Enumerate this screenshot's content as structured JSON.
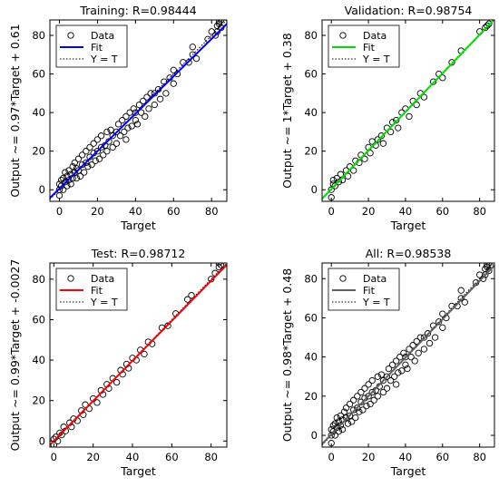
{
  "chart_data": [
    {
      "type": "scatter",
      "title": "Training: R=0.98444",
      "xlabel": "Target",
      "ylabel": "Output ~= 0.97*Target + 0.61",
      "xlim": [
        -5,
        88
      ],
      "ylim": [
        -6,
        88
      ],
      "xticks": [
        "0",
        "20",
        "40",
        "60",
        "80"
      ],
      "yticks": [
        "0",
        "20",
        "40",
        "60",
        "80"
      ],
      "fit": {
        "slope": 0.97,
        "intercept": 0.61,
        "color": "#0000ff"
      },
      "legend": {
        "position": "top-left",
        "entries": [
          "Data",
          "Fit",
          "Y = T"
        ]
      },
      "grid": false,
      "points": [
        [
          0,
          0
        ],
        [
          0,
          3
        ],
        [
          0,
          -3
        ],
        [
          1,
          5
        ],
        [
          1,
          2
        ],
        [
          2,
          0
        ],
        [
          2,
          6
        ],
        [
          3,
          4
        ],
        [
          3,
          9
        ],
        [
          4,
          2
        ],
        [
          4,
          7
        ],
        [
          5,
          5
        ],
        [
          5,
          10
        ],
        [
          6,
          3
        ],
        [
          6,
          8
        ],
        [
          7,
          12
        ],
        [
          7,
          6
        ],
        [
          8,
          9
        ],
        [
          8,
          14
        ],
        [
          9,
          6
        ],
        [
          9,
          11
        ],
        [
          10,
          10
        ],
        [
          10,
          16
        ],
        [
          11,
          7
        ],
        [
          12,
          13
        ],
        [
          12,
          18
        ],
        [
          13,
          9
        ],
        [
          14,
          14
        ],
        [
          14,
          20
        ],
        [
          15,
          12
        ],
        [
          16,
          17
        ],
        [
          16,
          22
        ],
        [
          17,
          13
        ],
        [
          18,
          19
        ],
        [
          18,
          24
        ],
        [
          19,
          15
        ],
        [
          20,
          20
        ],
        [
          20,
          26
        ],
        [
          21,
          16
        ],
        [
          22,
          22
        ],
        [
          22,
          28
        ],
        [
          23,
          18
        ],
        [
          24,
          23
        ],
        [
          25,
          30
        ],
        [
          25,
          20
        ],
        [
          26,
          25
        ],
        [
          27,
          31
        ],
        [
          28,
          22
        ],
        [
          28,
          28
        ],
        [
          30,
          30
        ],
        [
          30,
          24
        ],
        [
          31,
          34
        ],
        [
          32,
          28
        ],
        [
          33,
          36
        ],
        [
          34,
          30
        ],
        [
          35,
          38
        ],
        [
          35,
          26
        ],
        [
          36,
          32
        ],
        [
          37,
          40
        ],
        [
          38,
          33
        ],
        [
          39,
          42
        ],
        [
          40,
          36
        ],
        [
          40,
          40
        ],
        [
          41,
          34
        ],
        [
          42,
          44
        ],
        [
          43,
          40
        ],
        [
          44,
          46
        ],
        [
          45,
          38
        ],
        [
          46,
          48
        ],
        [
          47,
          42
        ],
        [
          48,
          50
        ],
        [
          50,
          50
        ],
        [
          50,
          44
        ],
        [
          52,
          52
        ],
        [
          53,
          47
        ],
        [
          55,
          56
        ],
        [
          56,
          50
        ],
        [
          58,
          58
        ],
        [
          60,
          62
        ],
        [
          60,
          55
        ],
        [
          62,
          60
        ],
        [
          65,
          66
        ],
        [
          68,
          66
        ],
        [
          70,
          70
        ],
        [
          70,
          74
        ],
        [
          72,
          68
        ],
        [
          78,
          78
        ],
        [
          80,
          82
        ],
        [
          82,
          80
        ],
        [
          83,
          85
        ],
        [
          84,
          87
        ],
        [
          85,
          84
        ],
        [
          85,
          88
        ],
        [
          84,
          86
        ],
        [
          83,
          82
        ]
      ]
    },
    {
      "type": "scatter",
      "title": "Validation: R=0.98754",
      "xlabel": "Target",
      "ylabel": "Output ~= 1*Target + 0.38",
      "xlim": [
        -5,
        88
      ],
      "ylim": [
        -6,
        88
      ],
      "xticks": [
        "0",
        "20",
        "40",
        "60",
        "80"
      ],
      "yticks": [
        "0",
        "20",
        "40",
        "60",
        "80"
      ],
      "fit": {
        "slope": 1.0,
        "intercept": 0.38,
        "color": "#00e000"
      },
      "legend": {
        "position": "top-left",
        "entries": [
          "Data",
          "Fit",
          "Y = T"
        ]
      },
      "grid": false,
      "points": [
        [
          0,
          -4
        ],
        [
          0,
          0
        ],
        [
          1,
          3
        ],
        [
          1,
          5
        ],
        [
          2,
          2
        ],
        [
          3,
          6
        ],
        [
          4,
          4
        ],
        [
          5,
          8
        ],
        [
          6,
          5
        ],
        [
          8,
          10
        ],
        [
          9,
          7
        ],
        [
          10,
          12
        ],
        [
          12,
          10
        ],
        [
          13,
          15
        ],
        [
          15,
          14
        ],
        [
          16,
          18
        ],
        [
          18,
          16
        ],
        [
          20,
          22
        ],
        [
          21,
          19
        ],
        [
          22,
          25
        ],
        [
          24,
          23
        ],
        [
          25,
          26
        ],
        [
          27,
          28
        ],
        [
          28,
          24
        ],
        [
          30,
          32
        ],
        [
          32,
          30
        ],
        [
          33,
          35
        ],
        [
          35,
          36
        ],
        [
          36,
          32
        ],
        [
          38,
          40
        ],
        [
          40,
          42
        ],
        [
          42,
          38
        ],
        [
          44,
          46
        ],
        [
          46,
          44
        ],
        [
          48,
          50
        ],
        [
          50,
          48
        ],
        [
          55,
          56
        ],
        [
          58,
          60
        ],
        [
          60,
          58
        ],
        [
          65,
          66
        ],
        [
          70,
          72
        ],
        [
          80,
          82
        ],
        [
          83,
          84
        ],
        [
          84,
          85
        ],
        [
          85,
          86
        ]
      ]
    },
    {
      "type": "scatter",
      "title": "Test: R=0.98712",
      "xlabel": "Target",
      "ylabel": "Output ~= 0.99*Target + -0.0027",
      "xlim": [
        -2,
        88
      ],
      "ylim": [
        -3,
        88
      ],
      "xticks": [
        "0",
        "20",
        "40",
        "60",
        "80"
      ],
      "yticks": [
        "0",
        "20",
        "40",
        "60",
        "80"
      ],
      "fit": {
        "slope": 0.99,
        "intercept": -0.0027,
        "color": "#ff0000"
      },
      "legend": {
        "position": "top-left",
        "entries": [
          "Data",
          "Fit",
          "Y = T"
        ]
      },
      "grid": false,
      "points": [
        [
          0,
          -2
        ],
        [
          0,
          1
        ],
        [
          1,
          2
        ],
        [
          2,
          0
        ],
        [
          3,
          4
        ],
        [
          4,
          3
        ],
        [
          5,
          7
        ],
        [
          6,
          5
        ],
        [
          8,
          9
        ],
        [
          9,
          7
        ],
        [
          10,
          11
        ],
        [
          12,
          10
        ],
        [
          14,
          15
        ],
        [
          15,
          13
        ],
        [
          16,
          18
        ],
        [
          18,
          16
        ],
        [
          20,
          21
        ],
        [
          22,
          19
        ],
        [
          24,
          25
        ],
        [
          25,
          23
        ],
        [
          27,
          28
        ],
        [
          28,
          26
        ],
        [
          30,
          31
        ],
        [
          32,
          29
        ],
        [
          34,
          35
        ],
        [
          35,
          33
        ],
        [
          37,
          38
        ],
        [
          38,
          36
        ],
        [
          40,
          41
        ],
        [
          42,
          40
        ],
        [
          44,
          45
        ],
        [
          46,
          43
        ],
        [
          48,
          49
        ],
        [
          50,
          48
        ],
        [
          55,
          56
        ],
        [
          58,
          57
        ],
        [
          62,
          63
        ],
        [
          68,
          70
        ],
        [
          70,
          72
        ],
        [
          80,
          80
        ],
        [
          82,
          83
        ],
        [
          84,
          86
        ],
        [
          85,
          87
        ],
        [
          84,
          88
        ]
      ]
    },
    {
      "type": "scatter",
      "title": "All: R=0.98538",
      "xlabel": "Target",
      "ylabel": "Output ~= 0.98*Target + 0.48",
      "xlim": [
        -5,
        88
      ],
      "ylim": [
        -6,
        88
      ],
      "xticks": [
        "0",
        "20",
        "40",
        "60",
        "80"
      ],
      "yticks": [
        "0",
        "20",
        "40",
        "60",
        "80"
      ],
      "fit": {
        "slope": 0.98,
        "intercept": 0.48,
        "color": "#606060"
      },
      "legend": {
        "position": "top-left",
        "entries": [
          "Data",
          "Fit",
          "Y = T"
        ]
      },
      "grid": false,
      "points": [
        [
          0,
          -4
        ],
        [
          0,
          0
        ],
        [
          0,
          3
        ],
        [
          1,
          5
        ],
        [
          1,
          2
        ],
        [
          2,
          0
        ],
        [
          2,
          6
        ],
        [
          3,
          4
        ],
        [
          3,
          9
        ],
        [
          4,
          2
        ],
        [
          4,
          7
        ],
        [
          5,
          5
        ],
        [
          5,
          10
        ],
        [
          6,
          3
        ],
        [
          6,
          8
        ],
        [
          7,
          12
        ],
        [
          8,
          9
        ],
        [
          8,
          14
        ],
        [
          9,
          6
        ],
        [
          10,
          10
        ],
        [
          10,
          16
        ],
        [
          11,
          7
        ],
        [
          12,
          13
        ],
        [
          12,
          18
        ],
        [
          13,
          9
        ],
        [
          14,
          14
        ],
        [
          14,
          20
        ],
        [
          15,
          12
        ],
        [
          16,
          17
        ],
        [
          16,
          22
        ],
        [
          17,
          13
        ],
        [
          18,
          19
        ],
        [
          18,
          24
        ],
        [
          19,
          15
        ],
        [
          20,
          20
        ],
        [
          20,
          26
        ],
        [
          21,
          16
        ],
        [
          22,
          22
        ],
        [
          22,
          28
        ],
        [
          23,
          18
        ],
        [
          24,
          23
        ],
        [
          25,
          30
        ],
        [
          25,
          20
        ],
        [
          26,
          25
        ],
        [
          27,
          31
        ],
        [
          28,
          22
        ],
        [
          28,
          28
        ],
        [
          30,
          30
        ],
        [
          30,
          24
        ],
        [
          31,
          34
        ],
        [
          32,
          28
        ],
        [
          33,
          36
        ],
        [
          34,
          30
        ],
        [
          35,
          38
        ],
        [
          35,
          26
        ],
        [
          36,
          32
        ],
        [
          37,
          40
        ],
        [
          38,
          33
        ],
        [
          39,
          42
        ],
        [
          40,
          36
        ],
        [
          40,
          40
        ],
        [
          41,
          34
        ],
        [
          42,
          44
        ],
        [
          43,
          40
        ],
        [
          44,
          46
        ],
        [
          45,
          38
        ],
        [
          46,
          48
        ],
        [
          47,
          42
        ],
        [
          48,
          50
        ],
        [
          50,
          50
        ],
        [
          50,
          44
        ],
        [
          52,
          52
        ],
        [
          53,
          47
        ],
        [
          55,
          56
        ],
        [
          56,
          50
        ],
        [
          58,
          58
        ],
        [
          60,
          62
        ],
        [
          60,
          55
        ],
        [
          62,
          60
        ],
        [
          65,
          66
        ],
        [
          68,
          66
        ],
        [
          70,
          70
        ],
        [
          70,
          74
        ],
        [
          72,
          68
        ],
        [
          78,
          78
        ],
        [
          80,
          82
        ],
        [
          82,
          80
        ],
        [
          83,
          85
        ],
        [
          84,
          87
        ],
        [
          85,
          84
        ],
        [
          85,
          88
        ],
        [
          84,
          86
        ],
        [
          83,
          82
        ]
      ]
    }
  ]
}
